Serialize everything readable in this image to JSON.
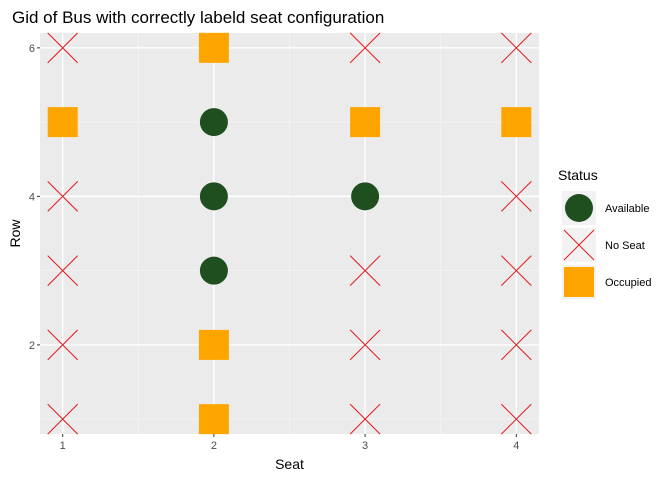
{
  "chart_data": {
    "type": "scatter",
    "title": "Gid of Bus with correctly labeld seat configuration",
    "xlabel": "Seat",
    "ylabel": "Row",
    "xlim": [
      0.85,
      4.15
    ],
    "ylim": [
      0.8,
      6.2
    ],
    "x_ticks": [
      1,
      2,
      3,
      4
    ],
    "y_ticks": [
      2,
      4,
      6
    ],
    "grid": true,
    "legend": {
      "title": "Status",
      "position": "right",
      "entries": [
        {
          "label": "Available",
          "shape": "circle",
          "color": "#1f4e1f"
        },
        {
          "label": "No Seat",
          "shape": "cross",
          "color": "#e41a1c"
        },
        {
          "label": "Occupied",
          "shape": "square",
          "color": "#ffa500"
        }
      ]
    },
    "points": [
      {
        "x": 1,
        "y": 1,
        "status": "No Seat"
      },
      {
        "x": 1,
        "y": 2,
        "status": "No Seat"
      },
      {
        "x": 1,
        "y": 3,
        "status": "No Seat"
      },
      {
        "x": 1,
        "y": 4,
        "status": "No Seat"
      },
      {
        "x": 1,
        "y": 5,
        "status": "Occupied"
      },
      {
        "x": 1,
        "y": 6,
        "status": "No Seat"
      },
      {
        "x": 2,
        "y": 1,
        "status": "Occupied"
      },
      {
        "x": 2,
        "y": 2,
        "status": "Occupied"
      },
      {
        "x": 2,
        "y": 3,
        "status": "Available"
      },
      {
        "x": 2,
        "y": 4,
        "status": "Available"
      },
      {
        "x": 2,
        "y": 5,
        "status": "Available"
      },
      {
        "x": 2,
        "y": 6,
        "status": "Occupied"
      },
      {
        "x": 3,
        "y": 1,
        "status": "No Seat"
      },
      {
        "x": 3,
        "y": 2,
        "status": "No Seat"
      },
      {
        "x": 3,
        "y": 3,
        "status": "No Seat"
      },
      {
        "x": 3,
        "y": 4,
        "status": "Available"
      },
      {
        "x": 3,
        "y": 5,
        "status": "Occupied"
      },
      {
        "x": 3,
        "y": 6,
        "status": "No Seat"
      },
      {
        "x": 4,
        "y": 1,
        "status": "No Seat"
      },
      {
        "x": 4,
        "y": 2,
        "status": "No Seat"
      },
      {
        "x": 4,
        "y": 3,
        "status": "No Seat"
      },
      {
        "x": 4,
        "y": 4,
        "status": "No Seat"
      },
      {
        "x": 4,
        "y": 5,
        "status": "Occupied"
      },
      {
        "x": 4,
        "y": 6,
        "status": "No Seat"
      }
    ]
  },
  "colors": {
    "panel_background": "#ebebeb",
    "grid_major": "#ffffff",
    "grid_minor": "#f5f5f5"
  }
}
